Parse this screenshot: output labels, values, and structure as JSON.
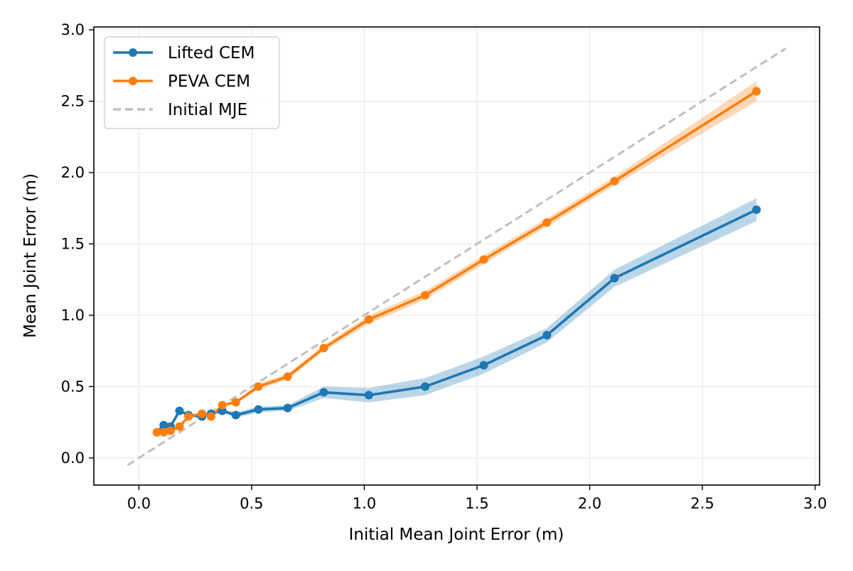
{
  "chart_data": {
    "type": "line",
    "title": "",
    "xlabel": "Initial Mean Joint Error (m)",
    "ylabel": "Mean Joint Error (m)",
    "xlim": [
      -0.2,
      3.02
    ],
    "ylim": [
      -0.19,
      3.02
    ],
    "xticks": [
      0.0,
      0.5,
      1.0,
      1.5,
      2.0,
      2.5,
      3.0
    ],
    "yticks": [
      0.0,
      0.5,
      1.0,
      1.5,
      2.0,
      2.5,
      3.0
    ],
    "xtick_labels": [
      "0.0",
      "0.5",
      "1.0",
      "1.5",
      "2.0",
      "2.5",
      "3.0"
    ],
    "ytick_labels": [
      "0.0",
      "0.5",
      "1.0",
      "1.5",
      "2.0",
      "2.5",
      "3.0"
    ],
    "grid": true,
    "legend_position": "top-left",
    "series": [
      {
        "name": "Lifted CEM",
        "color": "#1f77b4",
        "marker": "circle",
        "x": [
          0.08,
          0.11,
          0.14,
          0.18,
          0.22,
          0.28,
          0.32,
          0.37,
          0.43,
          0.53,
          0.66,
          0.82,
          1.02,
          1.27,
          1.53,
          1.81,
          2.11,
          2.74
        ],
        "y": [
          0.18,
          0.23,
          0.22,
          0.33,
          0.3,
          0.29,
          0.31,
          0.33,
          0.3,
          0.34,
          0.35,
          0.46,
          0.44,
          0.5,
          0.65,
          0.86,
          1.26,
          1.74
        ],
        "band": [
          0.01,
          0.01,
          0.01,
          0.01,
          0.01,
          0.01,
          0.01,
          0.01,
          0.02,
          0.02,
          0.02,
          0.04,
          0.05,
          0.06,
          0.06,
          0.05,
          0.06,
          0.08
        ]
      },
      {
        "name": "PEVA CEM",
        "color": "#ff7f0e",
        "marker": "circle",
        "x": [
          0.08,
          0.11,
          0.14,
          0.18,
          0.22,
          0.28,
          0.32,
          0.37,
          0.43,
          0.53,
          0.66,
          0.82,
          1.02,
          1.27,
          1.53,
          1.81,
          2.11,
          2.74
        ],
        "y": [
          0.18,
          0.18,
          0.19,
          0.22,
          0.29,
          0.31,
          0.29,
          0.37,
          0.39,
          0.5,
          0.57,
          0.77,
          0.97,
          1.14,
          1.39,
          1.65,
          1.94,
          2.57
        ],
        "band": [
          0.01,
          0.01,
          0.01,
          0.01,
          0.01,
          0.01,
          0.01,
          0.01,
          0.01,
          0.02,
          0.02,
          0.02,
          0.03,
          0.03,
          0.03,
          0.03,
          0.03,
          0.07
        ]
      },
      {
        "name": "Initial MJE",
        "color": "#bfbfbf",
        "style": "dashed",
        "x": [
          -0.05,
          2.87
        ],
        "y": [
          -0.05,
          2.87
        ]
      }
    ]
  }
}
